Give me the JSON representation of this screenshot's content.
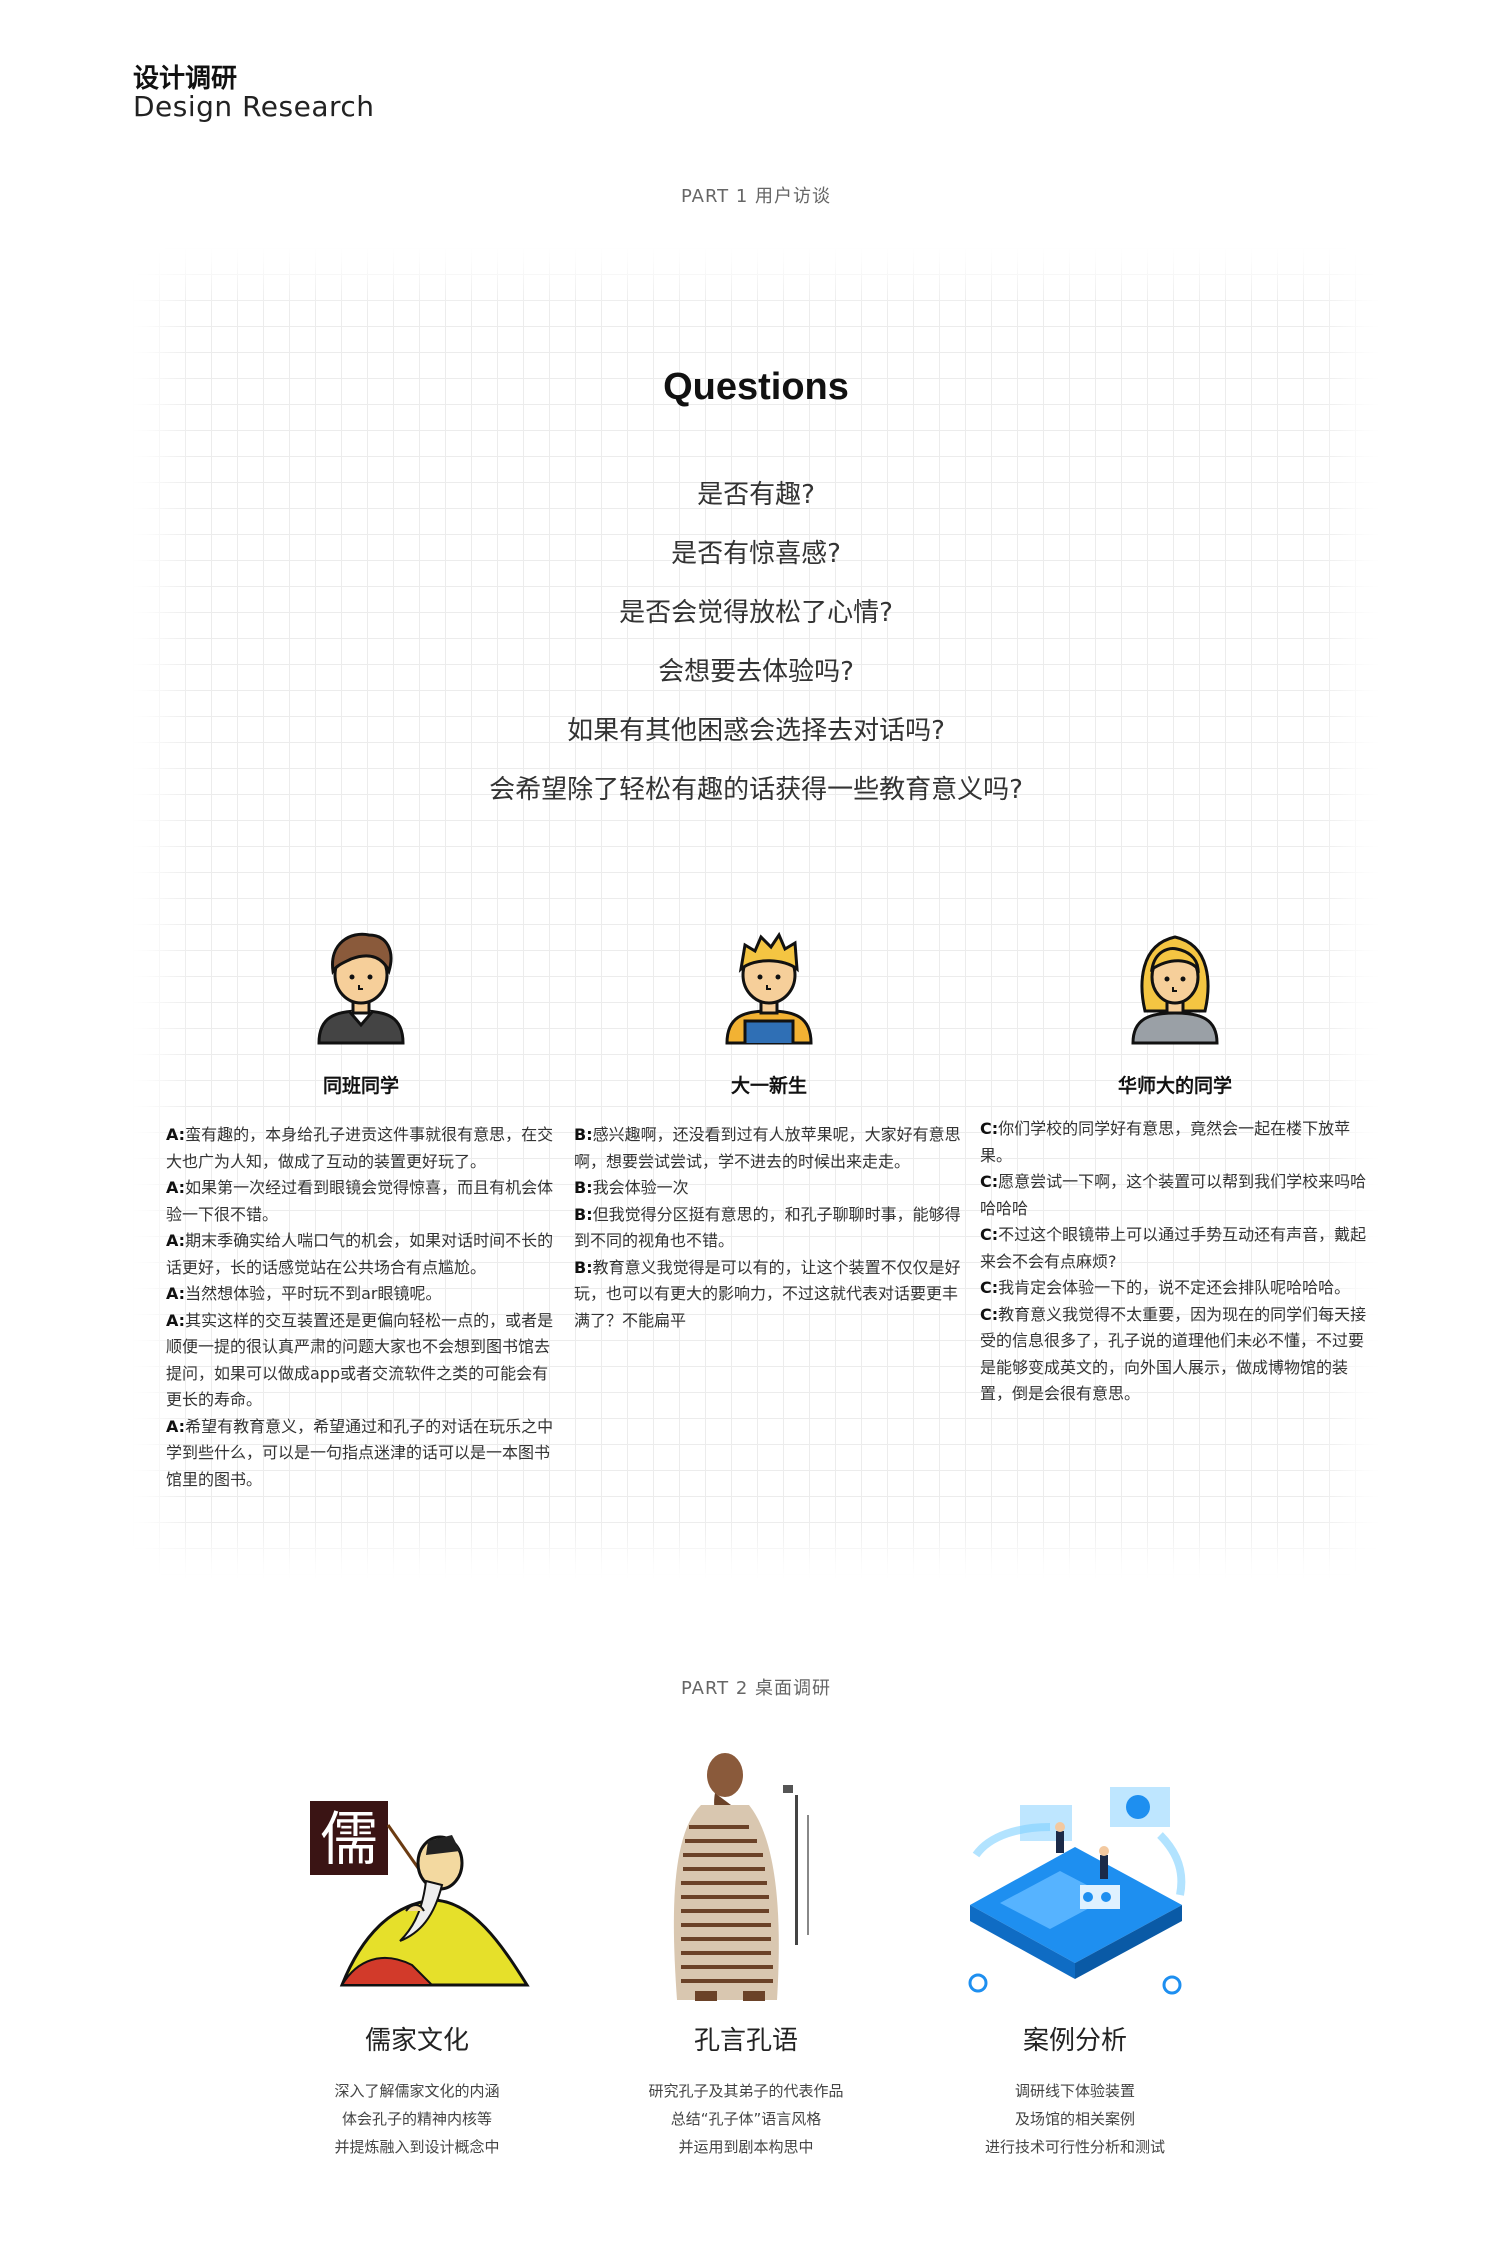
{
  "header": {
    "title_cn": "设计调研",
    "title_en": "Design Research"
  },
  "part1": {
    "label": "PART 1 用户访谈",
    "questions_title": "Questions",
    "questions": [
      "是否有趣?",
      "是否有惊喜感?",
      "是否会觉得放松了心情?",
      "会想要去体验吗?",
      "如果有其他困惑会选择去对话吗?",
      "会希望除了轻松有趣的话获得一些教育意义吗?"
    ],
    "personas": [
      {
        "name": "同班同学",
        "avatar_icon": "boy-brown-hair-avatar-icon",
        "lines": [
          {
            "speaker": "A:",
            "text": "蛮有趣的，本身给孔子进贡这件事就很有意思，在交大也广为人知，做成了互动的装置更好玩了。"
          },
          {
            "speaker": "A:",
            "text": "如果第一次经过看到眼镜会觉得惊喜，而且有机会体验一下很不错。"
          },
          {
            "speaker": "A:",
            "text": "期末季确实给人喘口气的机会，如果对话时间不长的话更好，长的话感觉站在公共场合有点尴尬。"
          },
          {
            "speaker": "A:",
            "text": "当然想体验，平时玩不到ar眼镜呢。"
          },
          {
            "speaker": "A:",
            "text": "其实这样的交互装置还是更偏向轻松一点的，或者是顺便一提的很认真严肃的问题大家也不会想到图书馆去提问，如果可以做成app或者交流软件之类的可能会有更长的寿命。"
          },
          {
            "speaker": "A:",
            "text": "希望有教育意义，希望通过和孔子的对话在玩乐之中学到些什么，可以是一句指点迷津的话可以是一本图书馆里的图书。"
          }
        ]
      },
      {
        "name": "大一新生",
        "avatar_icon": "boy-blond-hair-avatar-icon",
        "lines": [
          {
            "speaker": "B:",
            "text": "感兴趣啊，还没看到过有人放苹果呢，大家好有意思啊，想要尝试尝试，学不进去的时候出来走走。"
          },
          {
            "speaker": "B:",
            "text": "我会体验一次"
          },
          {
            "speaker": "B:",
            "text": "但我觉得分区挺有意思的，和孔子聊聊时事，能够得到不同的视角也不错。"
          },
          {
            "speaker": "B:",
            "text": "教育意义我觉得是可以有的，让这个装置不仅仅是好玩，也可以有更大的影响力，不过这就代表对话要更丰满了？不能扁平"
          }
        ]
      },
      {
        "name": "华师大的同学",
        "avatar_icon": "girl-blond-hair-avatar-icon",
        "lines": [
          {
            "speaker": "C:",
            "text": "你们学校的同学好有意思，竟然会一起在楼下放苹果。"
          },
          {
            "speaker": "C:",
            "text": "愿意尝试一下啊，这个装置可以帮到我们学校来吗哈哈哈哈"
          },
          {
            "speaker": "C:",
            "text": "不过这个眼镜带上可以通过手势互动还有声音，戴起来会不会有点麻烦?"
          },
          {
            "speaker": "C:",
            "text": "我肯定会体验一下的，说不定还会排队呢哈哈哈。"
          },
          {
            "speaker": "C:",
            "text": "教育意义我觉得不太重要，因为现在的同学们每天接受的信息很多了，孔子说的道理他们未必不懂，不过要是能够变成英文的，向外国人展示，做成博物馆的装置，倒是会很有意思。"
          }
        ]
      }
    ]
  },
  "part2": {
    "label": "PART 2 桌面调研",
    "cards": [
      {
        "title": "儒家文化",
        "image_icon": "confucian-scholar-illustration-icon",
        "banner_char": "儒",
        "desc": [
          "深入了解儒家文化的内涵",
          "体会孔子的精神内核等",
          "并提炼融入到设计概念中"
        ]
      },
      {
        "title": "孔言孔语",
        "image_icon": "confucius-text-portrait-icon",
        "desc": [
          "研究孔子及其弟子的代表作品",
          "总结“孔子体”语言风格",
          "并运用到剧本构思中"
        ]
      },
      {
        "title": "案例分析",
        "image_icon": "isometric-data-platform-icon",
        "desc": [
          "调研线下体验装置",
          "及场馆的相关案例",
          "进行技术可行性分析和测试"
        ]
      }
    ]
  }
}
